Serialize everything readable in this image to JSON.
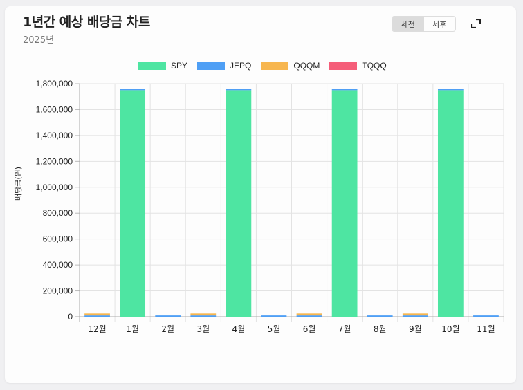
{
  "header": {
    "title": "1년간 예상 배당금 차트",
    "subtitle": "2025년",
    "toggle": {
      "options": [
        "세전",
        "세후"
      ],
      "selected": "세전"
    },
    "expand_icon": "expand-icon"
  },
  "colors": {
    "SPY": "#4ee5a2",
    "JEPQ": "#4f9ff5",
    "QQQM": "#f7b64f",
    "TQQQ": "#f55d79"
  },
  "chart_data": {
    "type": "bar",
    "stacked": true,
    "title": "1년간 예상 배당금 차트",
    "subtitle": "2025년",
    "xlabel": "",
    "ylabel": "배당금(원)",
    "ylim": [
      0,
      1800000
    ],
    "yticks": [
      0,
      200000,
      400000,
      600000,
      800000,
      1000000,
      1200000,
      1400000,
      1600000,
      1800000
    ],
    "ytick_labels": [
      "0",
      "200,000",
      "400,000",
      "600,000",
      "800,000",
      "1,000,000",
      "1,200,000",
      "1,400,000",
      "1,600,000",
      "1,800,000"
    ],
    "grid": true,
    "legend_position": "top",
    "categories": [
      "12월",
      "1월",
      "2월",
      "3월",
      "4월",
      "5월",
      "6월",
      "7월",
      "8월",
      "9월",
      "10월",
      "11월"
    ],
    "series": [
      {
        "name": "SPY",
        "values": [
          0,
          1750000,
          0,
          0,
          1750000,
          0,
          0,
          1750000,
          0,
          0,
          1750000,
          0
        ]
      },
      {
        "name": "JEPQ",
        "values": [
          10000,
          10000,
          10000,
          10000,
          10000,
          10000,
          10000,
          10000,
          10000,
          10000,
          10000,
          10000
        ]
      },
      {
        "name": "QQQM",
        "values": [
          15000,
          0,
          0,
          15000,
          0,
          0,
          15000,
          0,
          0,
          15000,
          0,
          0
        ]
      },
      {
        "name": "TQQQ",
        "values": [
          0,
          0,
          0,
          0,
          0,
          0,
          0,
          0,
          0,
          0,
          0,
          0
        ]
      }
    ]
  }
}
